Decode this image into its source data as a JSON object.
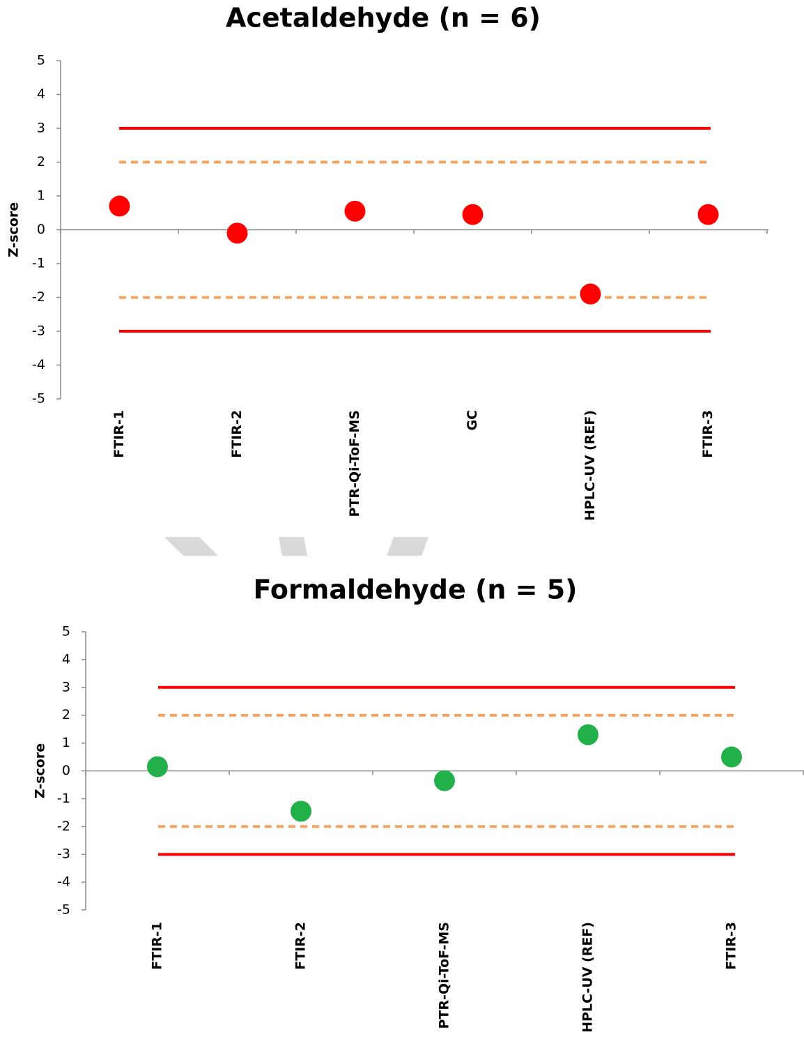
{
  "chart_data": [
    {
      "type": "dot",
      "title": "Acetaldehyde (n = 6)",
      "y_label": "Z-score",
      "categories": [
        "FTIR-1",
        "FTIR-2",
        "PTR-Qi-ToF-MS",
        "GC",
        "HPLC-UV (REF)",
        "FTIR-3"
      ],
      "values": [
        0.7,
        -0.1,
        0.55,
        0.45,
        -1.9,
        0.45
      ],
      "color": "#ff0000",
      "ylim": [
        -5,
        5
      ],
      "yticks": [
        -5,
        -4,
        -3,
        -2,
        -1,
        0,
        1,
        2,
        3,
        4,
        5
      ],
      "reference_lines": [
        {
          "value": 3,
          "color": "#ff0000",
          "dashed": false
        },
        {
          "value": 2,
          "color": "#f4a460",
          "dashed": true
        },
        {
          "value": -2,
          "color": "#f4a460",
          "dashed": true
        },
        {
          "value": -3,
          "color": "#ff0000",
          "dashed": false
        }
      ]
    },
    {
      "type": "dot",
      "title": "Formaldehyde (n = 5)",
      "y_label": "Z-score",
      "categories": [
        "FTIR-1",
        "FTIR-2",
        "PTR-Qi-ToF-MS",
        "HPLC-UV (REF)",
        "FTIR-3"
      ],
      "values": [
        0.15,
        -1.45,
        -0.35,
        1.3,
        0.5
      ],
      "color": "#22b04b",
      "ylim": [
        -5,
        5
      ],
      "yticks": [
        -5,
        -4,
        -3,
        -2,
        -1,
        0,
        1,
        2,
        3,
        4,
        5
      ],
      "reference_lines": [
        {
          "value": 3,
          "color": "#ff0000",
          "dashed": false
        },
        {
          "value": 2,
          "color": "#f4a460",
          "dashed": true
        },
        {
          "value": -2,
          "color": "#f4a460",
          "dashed": true
        },
        {
          "value": -3,
          "color": "#ff0000",
          "dashed": false
        }
      ]
    }
  ]
}
